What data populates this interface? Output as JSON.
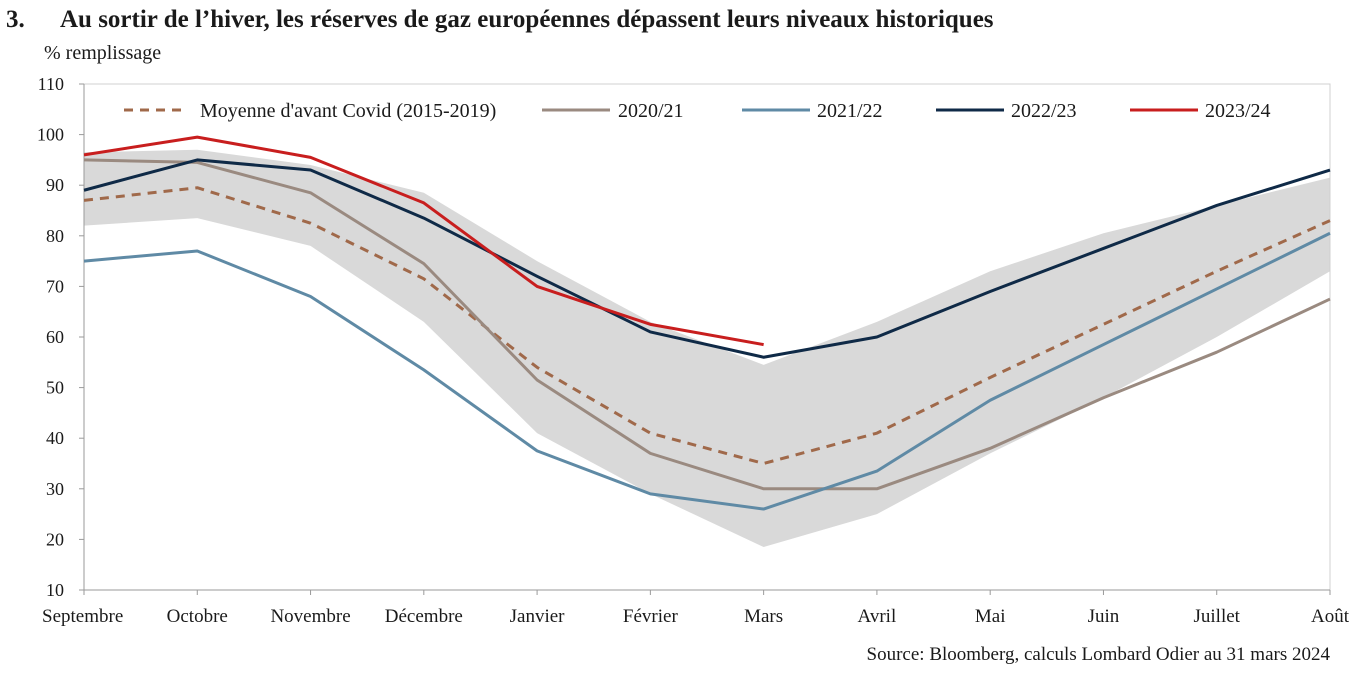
{
  "header": {
    "number": "3.",
    "title": "Au sortir de l’hiver, les réserves de gaz européennes dépassent leurs niveaux historiques"
  },
  "source": "Source: Bloomberg, calculs Lombard Odier au 31 mars 2024",
  "chart_data": {
    "type": "line",
    "title": "Au sortir de l’hiver, les réserves de gaz européennes dépassent leurs niveaux historiques",
    "ylabel": "% remplissage",
    "xlabel": "",
    "ylim": [
      10,
      110
    ],
    "yticks": [
      10,
      20,
      30,
      40,
      50,
      60,
      70,
      80,
      90,
      100,
      110
    ],
    "categories": [
      "Septembre",
      "Octobre",
      "Novembre",
      "Décembre",
      "Janvier",
      "Février",
      "Mars",
      "Avril",
      "Mai",
      "Juin",
      "Juillet",
      "Août"
    ],
    "grid": false,
    "legend_position": "top",
    "band": {
      "upper": [
        96.5,
        97,
        94,
        88.5,
        75,
        63,
        54.5,
        63,
        73,
        80.5,
        86,
        91.5
      ],
      "lower": [
        82,
        83.5,
        78,
        63,
        41,
        29,
        18.5,
        25,
        37,
        48,
        60,
        73
      ],
      "color": "#d9d9d9"
    },
    "series": [
      {
        "name": "Moyenne d'avant Covid (2015-2019)",
        "color": "#a0694a",
        "dashed": true,
        "values": [
          87,
          89.5,
          82.5,
          71.5,
          54,
          41,
          35,
          41,
          52,
          62.5,
          73,
          83
        ]
      },
      {
        "name": "2020/21",
        "color": "#9a8a80",
        "dashed": false,
        "values": [
          95,
          94.5,
          88.5,
          74.5,
          51.5,
          37,
          30,
          30,
          38,
          48,
          57,
          67.5
        ]
      },
      {
        "name": "2021/22",
        "color": "#5f8aa5",
        "dashed": false,
        "values": [
          75,
          77,
          68,
          53.5,
          37.5,
          29,
          26,
          33.5,
          47.5,
          58.5,
          69.5,
          80.5
        ]
      },
      {
        "name": "2022/23",
        "color": "#0f2a47",
        "dashed": false,
        "values": [
          89,
          95,
          93,
          83.5,
          72,
          61,
          56,
          60,
          69,
          77.5,
          86,
          93
        ]
      },
      {
        "name": "2023/24",
        "color": "#c81e1e",
        "dashed": false,
        "values": [
          96,
          99.5,
          95.5,
          86.5,
          70,
          62.5,
          58.5,
          null,
          null,
          null,
          null,
          null
        ]
      }
    ]
  }
}
